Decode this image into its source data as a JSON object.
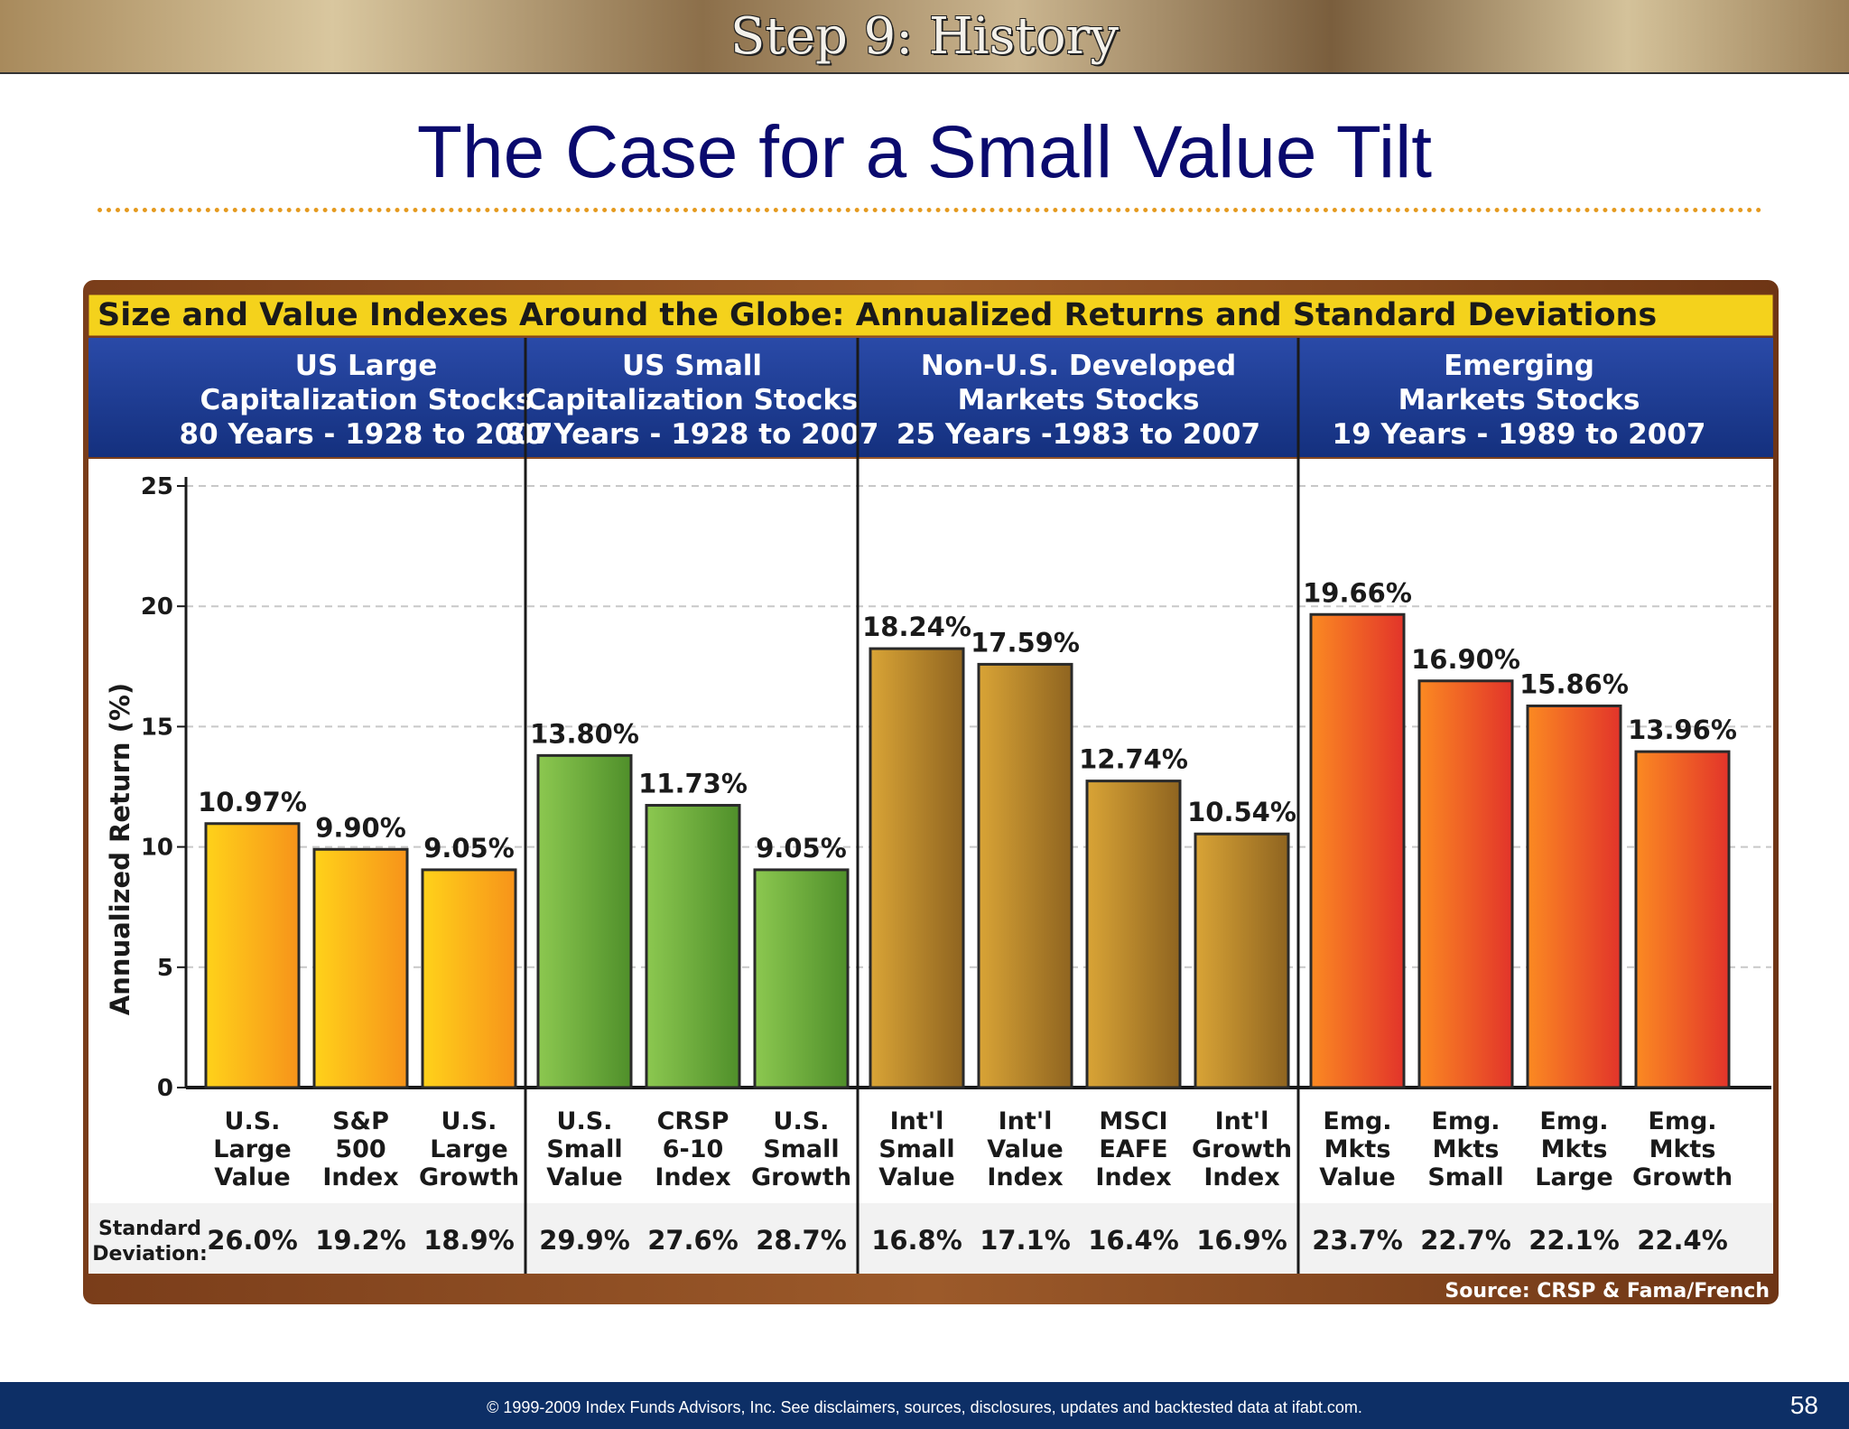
{
  "banner": {
    "title": "Step 9: History"
  },
  "slide_title": "The Case for a Small Value Tilt",
  "footer": {
    "text": "© 1999-2009 Index Funds Advisors, Inc. See disclaimers, sources, disclosures, updates and backtested data at ifabt.com.",
    "page_number": "58"
  },
  "colors": {
    "navy": "#0d2f66",
    "title": "#0a0a6e",
    "gold_header": "#f4d21c",
    "group_header": "#1f3f93"
  },
  "chart_data": {
    "type": "bar",
    "title": "Size and Value Indexes Around the Globe: Annualized Returns and Standard Deviations",
    "ylabel": "Annualized Return (%)",
    "ylim": [
      0,
      25
    ],
    "yticks": [
      "0",
      "5",
      "10",
      "15",
      "20",
      "25"
    ],
    "grid": true,
    "std_label": [
      "Standard",
      "Deviation:"
    ],
    "source": "Source:  CRSP & Fama/French",
    "groups": [
      {
        "header": [
          "US Large",
          "Capitalization Stocks",
          "80 Years - 1928 to 2007"
        ],
        "color": "#f8a21a",
        "bars": [
          {
            "label": [
              "U.S.",
              "Large",
              "Value"
            ],
            "value": 10.97,
            "value_label": "10.97%",
            "std": "26.0%"
          },
          {
            "label": [
              "S&P",
              "500",
              "Index"
            ],
            "value": 9.9,
            "value_label": "9.90%",
            "std": "19.2%"
          },
          {
            "label": [
              "U.S.",
              "Large",
              "Growth"
            ],
            "value": 9.05,
            "value_label": "9.05%",
            "std": "18.9%"
          }
        ]
      },
      {
        "header": [
          "US Small",
          "Capitalization Stocks",
          "80 Years - 1928 to 2007"
        ],
        "color": "#6aab3a",
        "bars": [
          {
            "label": [
              "U.S.",
              "Small",
              "Value"
            ],
            "value": 13.8,
            "value_label": "13.80%",
            "std": "29.9%"
          },
          {
            "label": [
              "CRSP",
              "6-10",
              "Index"
            ],
            "value": 11.73,
            "value_label": "11.73%",
            "std": "27.6%"
          },
          {
            "label": [
              "U.S.",
              "Small",
              "Growth"
            ],
            "value": 9.05,
            "value_label": "9.05%",
            "std": "28.7%"
          }
        ]
      },
      {
        "header": [
          "Non-U.S. Developed",
          "Markets Stocks",
          "25 Years -1983 to 2007"
        ],
        "color": "#b8862a",
        "bars": [
          {
            "label": [
              "Int'l",
              "Small",
              "Value"
            ],
            "value": 18.24,
            "value_label": "18.24%",
            "std": "16.8%"
          },
          {
            "label": [
              "Int'l",
              "Value",
              "Index"
            ],
            "value": 17.59,
            "value_label": "17.59%",
            "std": "17.1%"
          },
          {
            "label": [
              "MSCI",
              "EAFE",
              "Index"
            ],
            "value": 12.74,
            "value_label": "12.74%",
            "std": "16.4%"
          },
          {
            "label": [
              "Int'l",
              "Growth",
              "Index"
            ],
            "value": 10.54,
            "value_label": "10.54%",
            "std": "16.9%"
          }
        ]
      },
      {
        "header": [
          "Emerging",
          "Markets Stocks",
          "19 Years - 1989 to 2007"
        ],
        "color": "#f0602a",
        "bars": [
          {
            "label": [
              "Emg.",
              "Mkts",
              "Value"
            ],
            "value": 19.66,
            "value_label": "19.66%",
            "std": "23.7%"
          },
          {
            "label": [
              "Emg.",
              "Mkts",
              "Small"
            ],
            "value": 16.9,
            "value_label": "16.90%",
            "std": "22.7%"
          },
          {
            "label": [
              "Emg.",
              "Mkts",
              "Large"
            ],
            "value": 15.86,
            "value_label": "15.86%",
            "std": "22.1%"
          },
          {
            "label": [
              "Emg.",
              "Mkts",
              "Growth"
            ],
            "value": 13.96,
            "value_label": "13.96%",
            "std": "22.4%"
          }
        ]
      }
    ]
  }
}
